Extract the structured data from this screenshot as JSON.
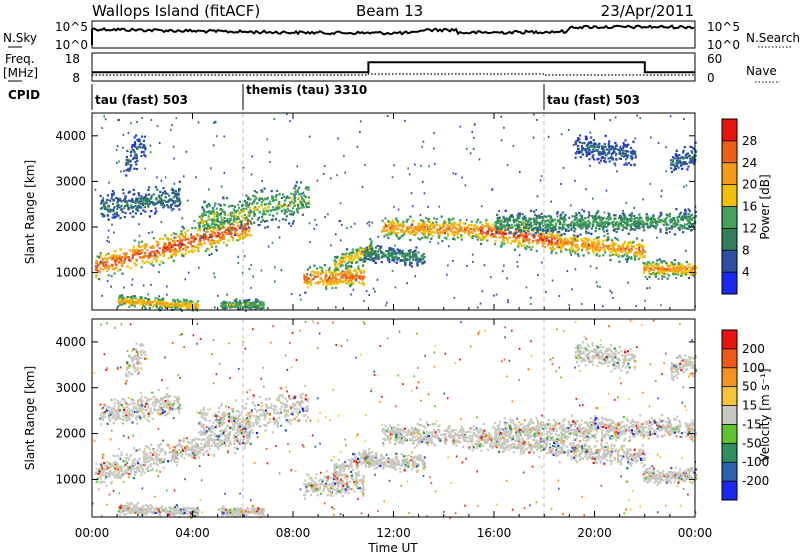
{
  "header": {
    "site": "Wallops Island (fitACF)",
    "beam": "Beam 13",
    "date": "23/Apr/2011"
  },
  "noise_panel": {
    "left_label": "N.Sky",
    "left_ticks": [
      "10^5",
      "10^0"
    ],
    "right_ticks": [
      "10^5",
      "10^0"
    ],
    "right_label": "N.Search"
  },
  "freq_panel": {
    "left_label_line1": "Freq.",
    "left_label_line2": "[MHz]",
    "left_ticks": [
      "18",
      "8"
    ],
    "right_ticks": [
      "60",
      "0"
    ],
    "right_label": "Nave"
  },
  "cpid": {
    "label": "CPID",
    "segments": [
      {
        "text": "tau (fast) 503",
        "start_h": 0
      },
      {
        "text": "themis (tau) 3310",
        "start_h": 6
      },
      {
        "text": "tau (fast) 503",
        "start_h": 18
      }
    ]
  },
  "power_panel": {
    "ylabel": "Slant Range [km]",
    "yticks": [
      "1000",
      "2000",
      "3000",
      "4000"
    ],
    "colorbar_label": "Power [dB]",
    "colorbar_ticks": [
      "4",
      "8",
      "12",
      "16",
      "20",
      "24",
      "28"
    ],
    "colors": [
      "#1a28f0",
      "#2c4fa5",
      "#2f7f5c",
      "#43a25a",
      "#f2c000",
      "#f49c1a",
      "#ef5e16",
      "#e8150f"
    ]
  },
  "velocity_panel": {
    "ylabel": "Slant Range [km]",
    "yticks": [
      "1000",
      "2000",
      "3000",
      "4000"
    ],
    "colorbar_label": "Velocity [m s⁻¹]",
    "colorbar_ticks": [
      "200",
      "100",
      "50",
      "15",
      "-15",
      "-50",
      "-100",
      "-200"
    ],
    "colors": [
      "#1a28f0",
      "#2f5fb0",
      "#2e8f5c",
      "#5cc530",
      "#c8c8c0",
      "#f5c43c",
      "#f59322",
      "#ef5717",
      "#e8150f"
    ]
  },
  "x_axis": {
    "ticks": [
      "00:00",
      "04:00",
      "08:00",
      "12:00",
      "16:00",
      "20:00",
      "00:00"
    ],
    "label": "Time UT"
  },
  "chart_data": {
    "type": "heatmap",
    "x_range_hours": [
      0,
      24
    ],
    "y_range_km": [
      180,
      4500
    ],
    "cpid_boundaries_h": [
      6,
      18
    ],
    "frequency_mhz_steps": [
      {
        "from_h": 0,
        "to_h": 11,
        "value": 10.4
      },
      {
        "from_h": 11,
        "to_h": 22,
        "value": 15.4
      },
      {
        "from_h": 22,
        "to_h": 24,
        "value": 10.4
      }
    ],
    "power_bands": [
      {
        "from_h": 0.1,
        "to_h": 6.3,
        "center_start_km": 1150,
        "center_end_km": 2050,
        "width_km": 420,
        "peak_db": 28
      },
      {
        "from_h": 4.2,
        "to_h": 8.6,
        "center_start_km": 2150,
        "center_end_km": 2650,
        "width_km": 550,
        "peak_db": 16
      },
      {
        "from_h": 0.3,
        "to_h": 3.5,
        "center_start_km": 2450,
        "center_end_km": 2700,
        "width_km": 400,
        "peak_db": 10
      },
      {
        "from_h": 1.3,
        "to_h": 2.1,
        "center_start_km": 3400,
        "center_end_km": 3900,
        "width_km": 500,
        "peak_db": 8
      },
      {
        "from_h": 8.4,
        "to_h": 10.8,
        "center_start_km": 880,
        "center_end_km": 950,
        "width_km": 330,
        "peak_db": 26
      },
      {
        "from_h": 9.6,
        "to_h": 11.1,
        "center_start_km": 1200,
        "center_end_km": 1550,
        "width_km": 280,
        "peak_db": 20
      },
      {
        "from_h": 10.8,
        "to_h": 13.2,
        "center_start_km": 1450,
        "center_end_km": 1350,
        "width_km": 260,
        "peak_db": 12
      },
      {
        "from_h": 11.5,
        "to_h": 12.6,
        "center_start_km": 2000,
        "center_end_km": 2000,
        "width_km": 300,
        "peak_db": 24
      },
      {
        "from_h": 12.6,
        "to_h": 15.4,
        "center_start_km": 2000,
        "center_end_km": 1950,
        "width_km": 350,
        "peak_db": 24
      },
      {
        "from_h": 15.4,
        "to_h": 18.5,
        "center_start_km": 1950,
        "center_end_km": 1700,
        "width_km": 350,
        "peak_db": 28
      },
      {
        "from_h": 18.5,
        "to_h": 22.0,
        "center_start_km": 1700,
        "center_end_km": 1500,
        "width_km": 330,
        "peak_db": 24
      },
      {
        "from_h": 16.0,
        "to_h": 24.0,
        "center_start_km": 2100,
        "center_end_km": 2150,
        "width_km": 330,
        "peak_db": 14
      },
      {
        "from_h": 21.9,
        "to_h": 24.0,
        "center_start_km": 1100,
        "center_end_km": 1100,
        "width_km": 240,
        "peak_db": 24
      },
      {
        "from_h": 19.2,
        "to_h": 21.6,
        "center_start_km": 3800,
        "center_end_km": 3600,
        "width_km": 380,
        "peak_db": 8
      },
      {
        "from_h": 23.0,
        "to_h": 24.0,
        "center_start_km": 3400,
        "center_end_km": 3600,
        "width_km": 350,
        "peak_db": 8
      },
      {
        "from_h": 1.0,
        "to_h": 4.2,
        "center_start_km": 400,
        "center_end_km": 300,
        "width_km": 170,
        "peak_db": 22
      },
      {
        "from_h": 5.1,
        "to_h": 6.8,
        "center_start_km": 320,
        "center_end_km": 320,
        "width_km": 140,
        "peak_db": 16
      }
    ],
    "velocity_main_bin": "-15 to 15 m/s (ground scatter dominant)"
  }
}
